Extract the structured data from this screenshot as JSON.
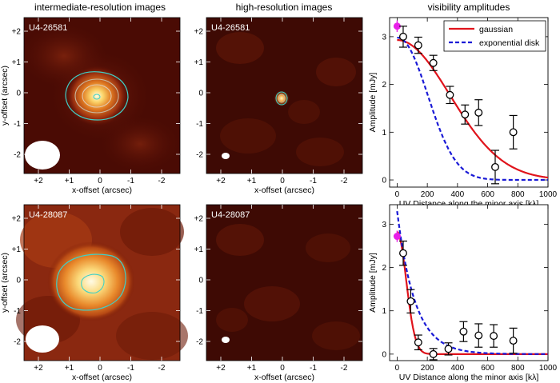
{
  "column_titles": [
    "intermediate-resolution images",
    "high-resolution images",
    "visibility amplitudes"
  ],
  "image_panels": {
    "rows": [
      {
        "name": "U4-26581"
      },
      {
        "name": "U4-28087"
      }
    ],
    "xlabel": "x-offset (arcsec)",
    "ylabel": "y-offset (arcsec)",
    "x_ticks": [
      "+2",
      "+1",
      "0",
      "-1",
      "-2"
    ],
    "y_ticks": [
      "+2",
      "+1",
      "0",
      "-1",
      "-2"
    ]
  },
  "colors": {
    "gaussian": "#e0141c",
    "exponential": "#1a1ad6",
    "total_flux_marker": "#e81ee8",
    "contour": "#3fd0c8",
    "contour_inner": "#c8b8a0"
  },
  "chart_data": [
    {
      "type": "scatter",
      "name": "U4-26581",
      "xlabel": "UV Distance along the minor axis [kλ]",
      "ylabel": "Amplitude [mJy]",
      "xlim": [
        -50,
        1000
      ],
      "ylim": [
        -0.15,
        3.4
      ],
      "x_ticks": [
        0,
        200,
        400,
        600,
        800,
        1000
      ],
      "y_ticks": [
        0,
        1,
        2,
        3
      ],
      "legend": {
        "placement": "top-right",
        "entries": [
          "gaussian",
          "exponential disk"
        ]
      },
      "total_flux": {
        "x": 0,
        "y": 3.22,
        "err": 0.12
      },
      "points": [
        {
          "x": 40,
          "y": 3.0,
          "err": 0.22
        },
        {
          "x": 140,
          "y": 2.82,
          "err": 0.17
        },
        {
          "x": 240,
          "y": 2.45,
          "err": 0.16
        },
        {
          "x": 350,
          "y": 1.78,
          "err": 0.18
        },
        {
          "x": 450,
          "y": 1.37,
          "err": 0.2
        },
        {
          "x": 540,
          "y": 1.41,
          "err": 0.27
        },
        {
          "x": 650,
          "y": 0.27,
          "err": 0.35
        },
        {
          "x": 770,
          "y": 1.0,
          "err": 0.35
        }
      ],
      "gaussian": {
        "amp": 2.93,
        "sigma": 350
      },
      "exponential": {
        "amp": 2.98,
        "rate": 0.0061,
        "power": 2.1
      }
    },
    {
      "type": "scatter",
      "name": "U4-28087",
      "xlabel": "UV Distance along the minor axis [kλ]",
      "ylabel": "Amplitude [mJy]",
      "xlim": [
        -50,
        1000
      ],
      "ylim": [
        -0.15,
        3.45
      ],
      "x_ticks": [
        0,
        200,
        400,
        600,
        800,
        1000
      ],
      "y_ticks": [
        0,
        1,
        2,
        3
      ],
      "legend": null,
      "total_flux": {
        "x": 0,
        "y": 2.72,
        "err": 0.13
      },
      "points": [
        {
          "x": 40,
          "y": 2.33,
          "err": 0.28
        },
        {
          "x": 90,
          "y": 1.22,
          "err": 0.27
        },
        {
          "x": 140,
          "y": 0.27,
          "err": 0.17
        },
        {
          "x": 240,
          "y": 0.0,
          "err": 0.13
        },
        {
          "x": 340,
          "y": 0.12,
          "err": 0.14
        },
        {
          "x": 440,
          "y": 0.52,
          "err": 0.23
        },
        {
          "x": 540,
          "y": 0.43,
          "err": 0.27
        },
        {
          "x": 640,
          "y": 0.42,
          "err": 0.26
        },
        {
          "x": 770,
          "y": 0.31,
          "err": 0.29
        }
      ],
      "gaussian": {
        "amp": 2.82,
        "sigma": 60
      },
      "exponential": {
        "amp": 3.3,
        "rate": 0.0255,
        "power": 1.0
      }
    }
  ]
}
